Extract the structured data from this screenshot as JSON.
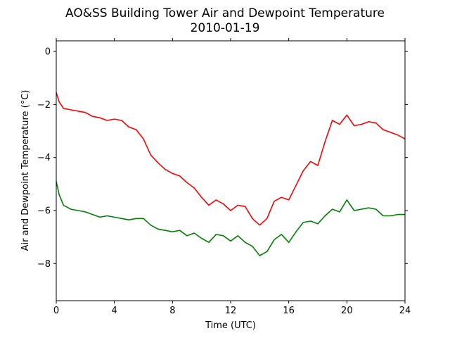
{
  "chart_data": {
    "type": "line",
    "title": "AO&SS Building Tower Air and Dewpoint Temperature",
    "subtitle": "2010-01-19",
    "xlabel": "Time (UTC)",
    "ylabel": "Air and Dewpoint Temperature (°C)",
    "xlim": [
      0,
      24
    ],
    "ylim": [
      -9.4,
      0.4
    ],
    "xticks": [
      0,
      4,
      8,
      12,
      16,
      20,
      24
    ],
    "yticks": [
      0,
      -2,
      -4,
      -6,
      -8
    ],
    "grid": false,
    "series": [
      {
        "color": "#ff0000",
        "x": [
          0,
          0.2,
          0.5,
          1,
          1.5,
          2,
          2.5,
          3,
          3.5,
          4,
          4.5,
          5,
          5.5,
          6,
          6.5,
          7,
          7.5,
          8,
          8.5,
          9,
          9.5,
          10,
          10.5,
          11,
          11.5,
          12,
          12.5,
          13,
          13.5,
          14,
          14.5,
          15,
          15.5,
          16,
          16.5,
          17,
          17.5,
          18,
          18.5,
          19,
          19.5,
          20,
          20.5,
          21,
          21.5,
          22,
          22.5,
          23,
          23.5,
          24
        ],
        "y": [
          -1.55,
          -1.9,
          -2.15,
          -2.2,
          -2.25,
          -2.3,
          -2.45,
          -2.5,
          -2.6,
          -2.55,
          -2.6,
          -2.85,
          -2.95,
          -3.3,
          -3.9,
          -4.2,
          -4.45,
          -4.6,
          -4.7,
          -4.95,
          -5.15,
          -5.5,
          -5.8,
          -5.6,
          -5.75,
          -6.0,
          -5.8,
          -5.85,
          -6.3,
          -6.55,
          -6.3,
          -5.65,
          -5.5,
          -5.6,
          -5.05,
          -4.5,
          -4.15,
          -4.3,
          -3.4,
          -2.6,
          -2.75,
          -2.4,
          -2.8,
          -2.75,
          -2.65,
          -2.7,
          -2.95,
          -3.05,
          -3.15,
          -3.3
        ]
      },
      {
        "color": "#008000",
        "x": [
          0,
          0.2,
          0.5,
          1,
          1.5,
          2,
          2.5,
          3,
          3.5,
          4,
          4.5,
          5,
          5.5,
          6,
          6.5,
          7,
          7.5,
          8,
          8.5,
          9,
          9.5,
          10,
          10.5,
          11,
          11.5,
          12,
          12.5,
          13,
          13.5,
          14,
          14.5,
          15,
          15.5,
          16,
          16.5,
          17,
          17.5,
          18,
          18.5,
          19,
          19.5,
          20,
          20.5,
          21,
          21.5,
          22,
          22.5,
          23,
          23.5,
          24
        ],
        "y": [
          -4.9,
          -5.4,
          -5.8,
          -5.95,
          -6.0,
          -6.05,
          -6.15,
          -6.25,
          -6.2,
          -6.25,
          -6.3,
          -6.35,
          -6.3,
          -6.3,
          -6.55,
          -6.7,
          -6.75,
          -6.8,
          -6.75,
          -6.95,
          -6.85,
          -7.05,
          -7.2,
          -6.9,
          -6.95,
          -7.15,
          -6.95,
          -7.2,
          -7.35,
          -7.7,
          -7.55,
          -7.1,
          -6.9,
          -7.2,
          -6.8,
          -6.45,
          -6.4,
          -6.5,
          -6.2,
          -5.95,
          -6.05,
          -5.6,
          -6.0,
          -5.95,
          -5.9,
          -5.95,
          -6.2,
          -6.2,
          -6.15,
          -6.15
        ]
      }
    ]
  }
}
